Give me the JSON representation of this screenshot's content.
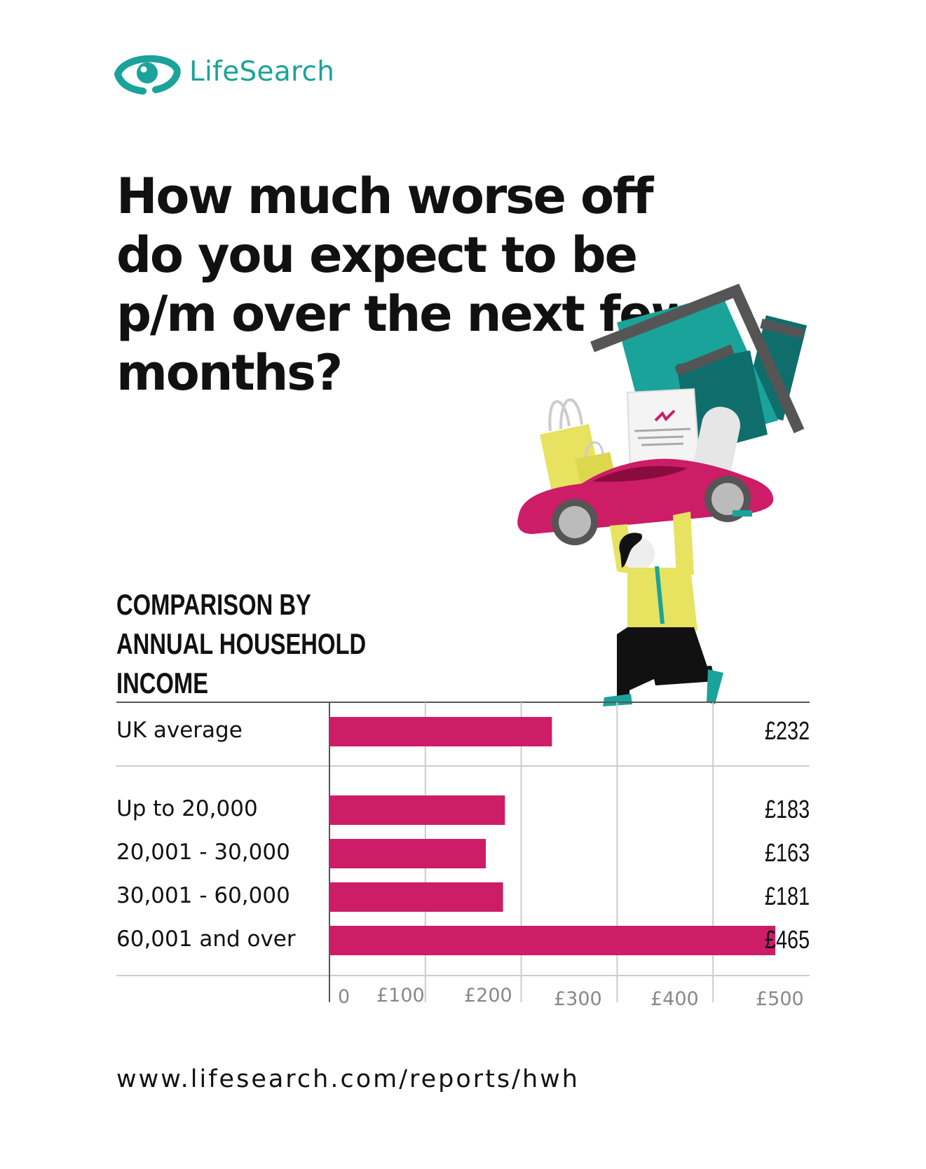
{
  "brand": {
    "name": "LifeSearch",
    "color": "#1aa39a"
  },
  "title": "How much worse off do you expect to be p/m over the next few months?",
  "subtitle": "COMPARISON BY ANNUAL HOUSEHOLD INCOME",
  "footer": {
    "url": "www.lifesearch.com/reports/hwh"
  },
  "colors": {
    "bar": "#cc1d66",
    "teal": "#1aa39a",
    "dark_teal": "#0f6e6b",
    "yellow": "#e7e25f",
    "grey": "#555555"
  },
  "chart_data": {
    "type": "bar",
    "orientation": "horizontal",
    "categories": [
      "UK average",
      "Up to 20,000",
      "20,001 - 30,000",
      "30,001 - 60,000",
      "60,001 and over"
    ],
    "values": [
      232,
      183,
      163,
      181,
      465
    ],
    "value_labels": [
      "£232",
      "£183",
      "£163",
      "£181",
      "£465"
    ],
    "x_ticks": [
      "0",
      "£100",
      "£200",
      "£300",
      "£400",
      "£500"
    ],
    "xlim": [
      0,
      500
    ],
    "grid": true
  }
}
